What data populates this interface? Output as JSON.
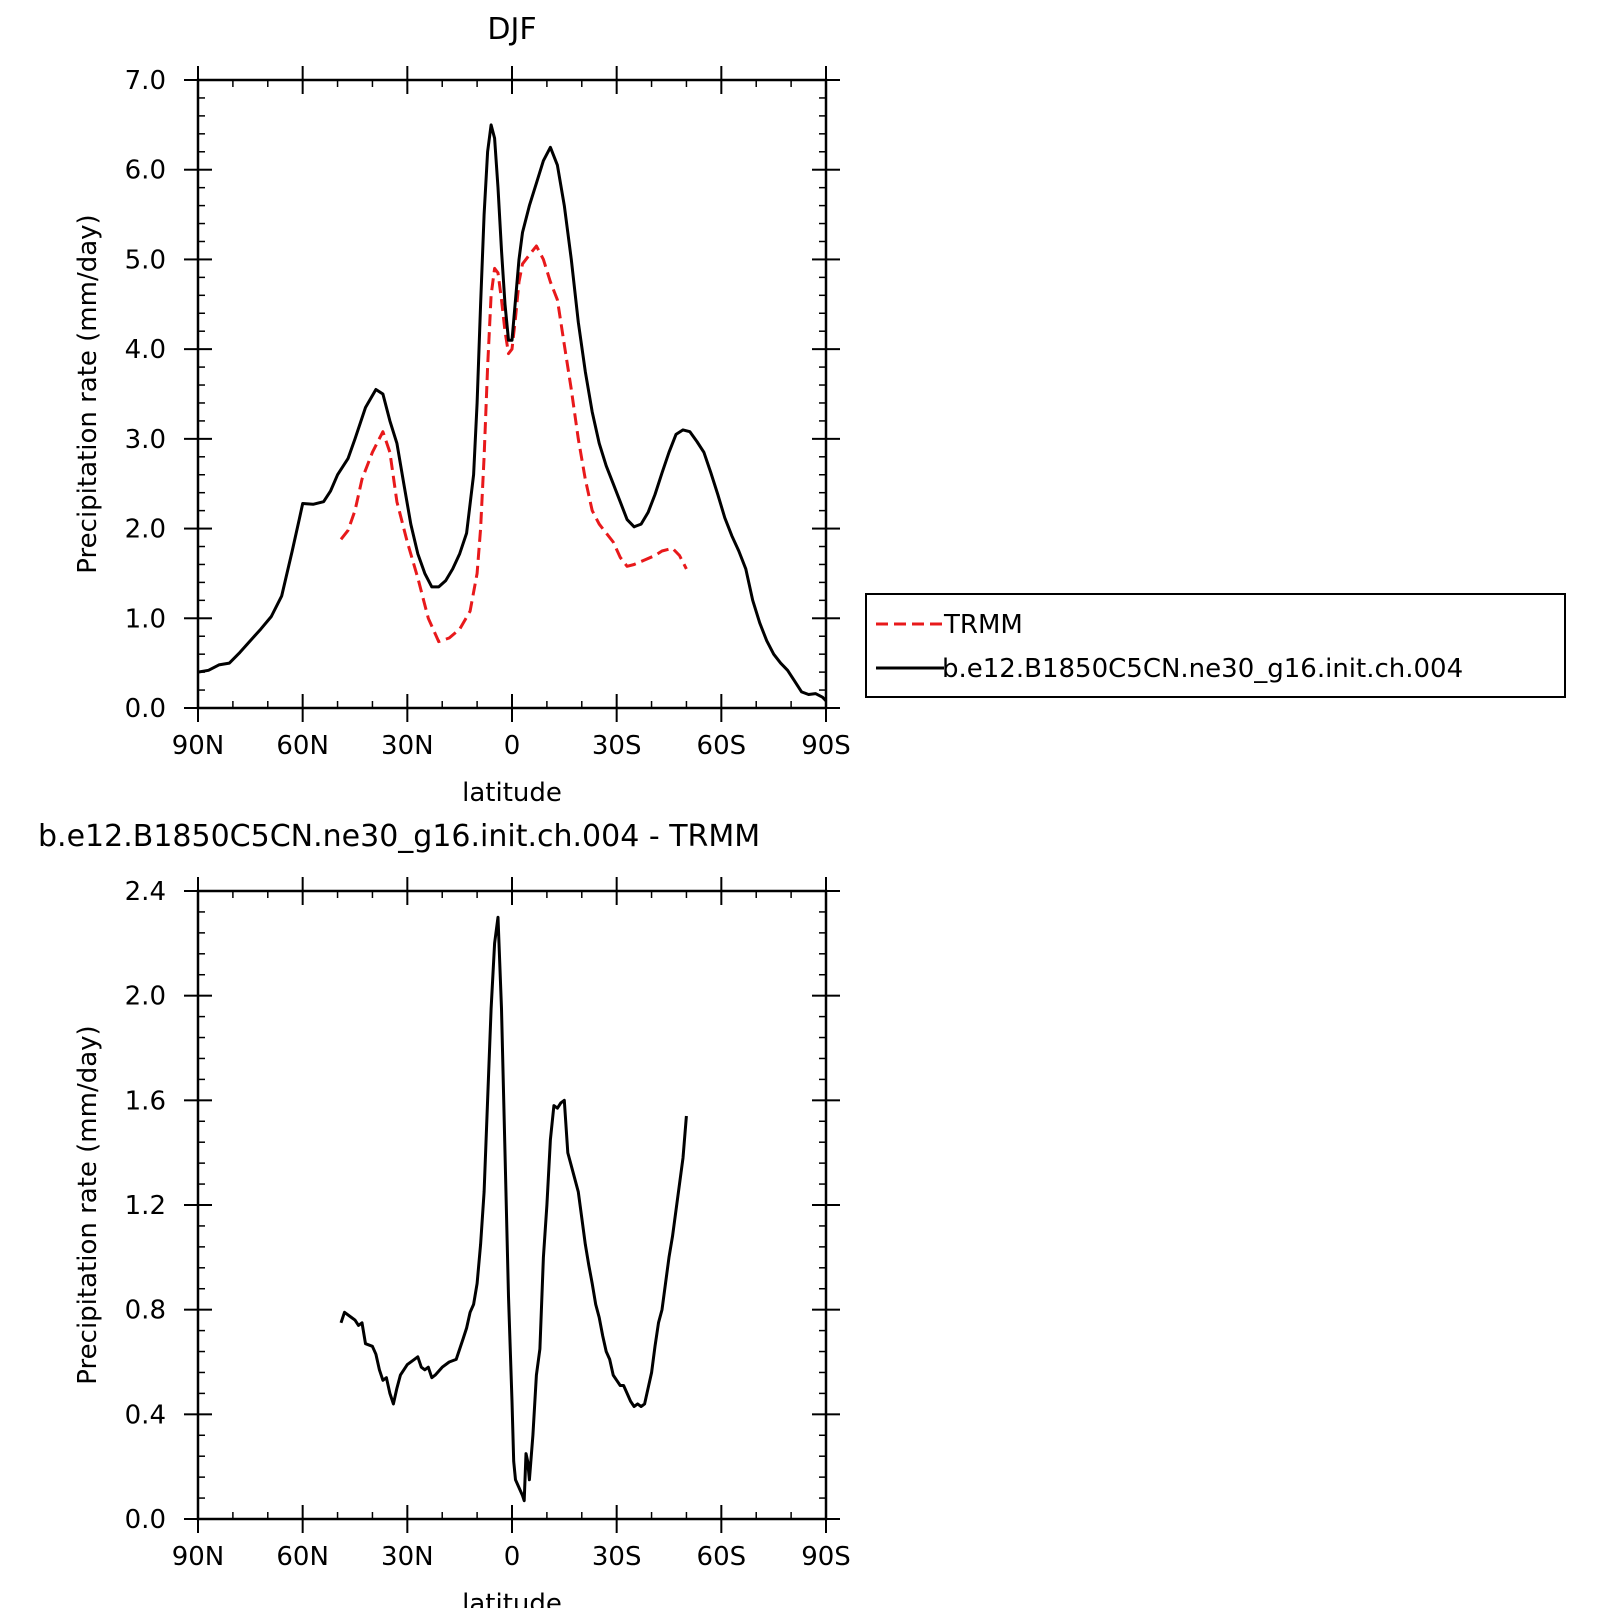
{
  "chart_data": [
    {
      "type": "line",
      "title": "DJF",
      "xlabel": "latitude",
      "ylabel": "Precipitation rate (mm/day)",
      "xlim": [
        -90,
        90
      ],
      "ylim": [
        0,
        7
      ],
      "x_ticks": [
        {
          "value": -90,
          "label": "90N"
        },
        {
          "value": -60,
          "label": "60N"
        },
        {
          "value": -30,
          "label": "30N"
        },
        {
          "value": 0,
          "label": "0"
        },
        {
          "value": 30,
          "label": "30S"
        },
        {
          "value": 60,
          "label": "60S"
        },
        {
          "value": 90,
          "label": "90S"
        }
      ],
      "y_ticks": [
        {
          "value": 0,
          "label": "0.0"
        },
        {
          "value": 1,
          "label": "1.0"
        },
        {
          "value": 2,
          "label": "2.0"
        },
        {
          "value": 3,
          "label": "3.0"
        },
        {
          "value": 4,
          "label": "4.0"
        },
        {
          "value": 5,
          "label": "5.0"
        },
        {
          "value": 6,
          "label": "6.0"
        },
        {
          "value": 7,
          "label": "7.0"
        }
      ],
      "legend_position": "right",
      "series": [
        {
          "name": "TRMM",
          "color": "#e8191b",
          "dash": "dashed",
          "points": [
            [
              -49,
              1.88
            ],
            [
              -47,
              1.98
            ],
            [
              -45,
              2.2
            ],
            [
              -43,
              2.55
            ],
            [
              -40,
              2.85
            ],
            [
              -37,
              3.08
            ],
            [
              -35,
              2.85
            ],
            [
              -33,
              2.3
            ],
            [
              -30,
              1.85
            ],
            [
              -27,
              1.45
            ],
            [
              -24,
              1.0
            ],
            [
              -21,
              0.74
            ],
            [
              -18,
              0.78
            ],
            [
              -15,
              0.88
            ],
            [
              -12,
              1.08
            ],
            [
              -10,
              1.5
            ],
            [
              -9,
              2.0
            ],
            [
              -8,
              2.8
            ],
            [
              -7,
              3.8
            ],
            [
              -6,
              4.6
            ],
            [
              -5,
              4.9
            ],
            [
              -4,
              4.85
            ],
            [
              -3,
              4.55
            ],
            [
              -2,
              4.2
            ],
            [
              -1,
              3.95
            ],
            [
              0,
              4.0
            ],
            [
              1,
              4.35
            ],
            [
              2,
              4.75
            ],
            [
              3,
              4.95
            ],
            [
              5,
              5.05
            ],
            [
              7,
              5.15
            ],
            [
              9,
              5.0
            ],
            [
              11,
              4.75
            ],
            [
              13,
              4.55
            ],
            [
              15,
              4.05
            ],
            [
              17,
              3.55
            ],
            [
              19,
              3.0
            ],
            [
              21,
              2.55
            ],
            [
              23,
              2.2
            ],
            [
              25,
              2.05
            ],
            [
              27,
              1.95
            ],
            [
              29,
              1.85
            ],
            [
              31,
              1.68
            ],
            [
              33,
              1.58
            ],
            [
              35,
              1.6
            ],
            [
              38,
              1.65
            ],
            [
              41,
              1.7
            ],
            [
              43,
              1.75
            ],
            [
              46,
              1.78
            ],
            [
              48,
              1.7
            ],
            [
              50,
              1.55
            ]
          ]
        },
        {
          "name": "b.e12.B1850C5CN.ne30_g16.init.ch.004",
          "color": "#000000",
          "dash": "solid",
          "points": [
            [
              -90,
              0.4
            ],
            [
              -87,
              0.42
            ],
            [
              -84,
              0.48
            ],
            [
              -81,
              0.5
            ],
            [
              -78,
              0.62
            ],
            [
              -75,
              0.75
            ],
            [
              -72,
              0.88
            ],
            [
              -69,
              1.02
            ],
            [
              -66,
              1.25
            ],
            [
              -63,
              1.75
            ],
            [
              -61,
              2.1
            ],
            [
              -60,
              2.28
            ],
            [
              -57,
              2.27
            ],
            [
              -54,
              2.3
            ],
            [
              -52,
              2.42
            ],
            [
              -50,
              2.6
            ],
            [
              -47,
              2.78
            ],
            [
              -45,
              3.0
            ],
            [
              -42,
              3.35
            ],
            [
              -39,
              3.55
            ],
            [
              -37,
              3.5
            ],
            [
              -35,
              3.2
            ],
            [
              -33,
              2.95
            ],
            [
              -31,
              2.5
            ],
            [
              -29,
              2.05
            ],
            [
              -27,
              1.72
            ],
            [
              -25,
              1.5
            ],
            [
              -23,
              1.35
            ],
            [
              -21,
              1.35
            ],
            [
              -19,
              1.42
            ],
            [
              -17,
              1.55
            ],
            [
              -15,
              1.72
            ],
            [
              -13,
              1.95
            ],
            [
              -11,
              2.6
            ],
            [
              -10,
              3.4
            ],
            [
              -9,
              4.5
            ],
            [
              -8,
              5.5
            ],
            [
              -7,
              6.2
            ],
            [
              -6,
              6.5
            ],
            [
              -5,
              6.35
            ],
            [
              -4,
              5.8
            ],
            [
              -3,
              5.1
            ],
            [
              -2,
              4.5
            ],
            [
              -1,
              4.1
            ],
            [
              0,
              4.1
            ],
            [
              1,
              4.55
            ],
            [
              2,
              5.0
            ],
            [
              3,
              5.3
            ],
            [
              5,
              5.6
            ],
            [
              7,
              5.85
            ],
            [
              9,
              6.1
            ],
            [
              11,
              6.25
            ],
            [
              13,
              6.05
            ],
            [
              15,
              5.6
            ],
            [
              17,
              5.0
            ],
            [
              19,
              4.3
            ],
            [
              21,
              3.75
            ],
            [
              23,
              3.3
            ],
            [
              25,
              2.95
            ],
            [
              27,
              2.7
            ],
            [
              29,
              2.5
            ],
            [
              31,
              2.3
            ],
            [
              33,
              2.1
            ],
            [
              35,
              2.02
            ],
            [
              37,
              2.05
            ],
            [
              39,
              2.18
            ],
            [
              41,
              2.38
            ],
            [
              43,
              2.62
            ],
            [
              45,
              2.85
            ],
            [
              47,
              3.05
            ],
            [
              49,
              3.1
            ],
            [
              51,
              3.08
            ],
            [
              53,
              2.97
            ],
            [
              55,
              2.85
            ],
            [
              57,
              2.62
            ],
            [
              59,
              2.38
            ],
            [
              61,
              2.12
            ],
            [
              63,
              1.92
            ],
            [
              65,
              1.75
            ],
            [
              67,
              1.55
            ],
            [
              69,
              1.2
            ],
            [
              71,
              0.95
            ],
            [
              73,
              0.75
            ],
            [
              75,
              0.6
            ],
            [
              77,
              0.5
            ],
            [
              79,
              0.42
            ],
            [
              81,
              0.3
            ],
            [
              83,
              0.18
            ],
            [
              85,
              0.15
            ],
            [
              87,
              0.16
            ],
            [
              89,
              0.12
            ],
            [
              90,
              0.08
            ]
          ]
        }
      ]
    },
    {
      "type": "line",
      "title": "b.e12.B1850C5CN.ne30_g16.init.ch.004 - TRMM",
      "xlabel": "latitude",
      "ylabel": "Precipitation rate (mm/day)",
      "xlim": [
        -90,
        90
      ],
      "ylim": [
        0,
        2.4
      ],
      "x_ticks": [
        {
          "value": -90,
          "label": "90N"
        },
        {
          "value": -60,
          "label": "60N"
        },
        {
          "value": -30,
          "label": "30N"
        },
        {
          "value": 0,
          "label": "0"
        },
        {
          "value": 30,
          "label": "30S"
        },
        {
          "value": 60,
          "label": "60S"
        },
        {
          "value": 90,
          "label": "90S"
        }
      ],
      "y_ticks": [
        {
          "value": 0,
          "label": "0.0"
        },
        {
          "value": 0.4,
          "label": "0.4"
        },
        {
          "value": 0.8,
          "label": "0.8"
        },
        {
          "value": 1.2,
          "label": "1.2"
        },
        {
          "value": 1.6,
          "label": "1.6"
        },
        {
          "value": 2.0,
          "label": "2.0"
        },
        {
          "value": 2.4,
          "label": "2.4"
        }
      ],
      "series": [
        {
          "color": "#000000",
          "dash": "solid",
          "points": [
            [
              -49,
              0.75
            ],
            [
              -48,
              0.79
            ],
            [
              -46,
              0.77
            ],
            [
              -45,
              0.76
            ],
            [
              -44,
              0.74
            ],
            [
              -43,
              0.75
            ],
            [
              -42,
              0.67
            ],
            [
              -40,
              0.66
            ],
            [
              -39,
              0.63
            ],
            [
              -38,
              0.57
            ],
            [
              -37,
              0.53
            ],
            [
              -36,
              0.54
            ],
            [
              -35,
              0.48
            ],
            [
              -34,
              0.44
            ],
            [
              -33,
              0.5
            ],
            [
              -32,
              0.55
            ],
            [
              -30,
              0.59
            ],
            [
              -28,
              0.61
            ],
            [
              -27,
              0.62
            ],
            [
              -26,
              0.58
            ],
            [
              -25,
              0.57
            ],
            [
              -24,
              0.58
            ],
            [
              -23,
              0.54
            ],
            [
              -22,
              0.55
            ],
            [
              -20,
              0.58
            ],
            [
              -18,
              0.6
            ],
            [
              -16,
              0.61
            ],
            [
              -14,
              0.69
            ],
            [
              -13,
              0.73
            ],
            [
              -12,
              0.79
            ],
            [
              -11,
              0.82
            ],
            [
              -10,
              0.9
            ],
            [
              -9,
              1.05
            ],
            [
              -8,
              1.25
            ],
            [
              -7,
              1.6
            ],
            [
              -6,
              1.95
            ],
            [
              -5,
              2.2
            ],
            [
              -4,
              2.3
            ],
            [
              -3,
              1.95
            ],
            [
              -2,
              1.4
            ],
            [
              -1,
              0.85
            ],
            [
              0,
              0.45
            ],
            [
              0.5,
              0.22
            ],
            [
              1,
              0.15
            ],
            [
              2,
              0.12
            ],
            [
              3,
              0.09
            ],
            [
              3.5,
              0.07
            ],
            [
              4,
              0.25
            ],
            [
              4.5,
              0.22
            ],
            [
              5,
              0.15
            ],
            [
              6,
              0.32
            ],
            [
              7,
              0.55
            ],
            [
              8,
              0.65
            ],
            [
              9,
              1.0
            ],
            [
              10,
              1.2
            ],
            [
              11,
              1.45
            ],
            [
              12,
              1.58
            ],
            [
              13,
              1.57
            ],
            [
              14,
              1.59
            ],
            [
              15,
              1.6
            ],
            [
              16,
              1.4
            ],
            [
              17,
              1.35
            ],
            [
              18,
              1.3
            ],
            [
              19,
              1.25
            ],
            [
              20,
              1.15
            ],
            [
              21,
              1.05
            ],
            [
              22,
              0.97
            ],
            [
              23,
              0.9
            ],
            [
              24,
              0.82
            ],
            [
              25,
              0.77
            ],
            [
              26,
              0.7
            ],
            [
              27,
              0.64
            ],
            [
              28,
              0.61
            ],
            [
              29,
              0.55
            ],
            [
              30,
              0.53
            ],
            [
              31,
              0.51
            ],
            [
              32,
              0.51
            ],
            [
              33,
              0.48
            ],
            [
              34,
              0.45
            ],
            [
              35,
              0.43
            ],
            [
              36,
              0.44
            ],
            [
              37,
              0.43
            ],
            [
              38,
              0.44
            ],
            [
              39,
              0.5
            ],
            [
              40,
              0.56
            ],
            [
              41,
              0.66
            ],
            [
              42,
              0.75
            ],
            [
              43,
              0.8
            ],
            [
              44,
              0.9
            ],
            [
              45,
              1.0
            ],
            [
              46,
              1.08
            ],
            [
              47,
              1.18
            ],
            [
              48,
              1.28
            ],
            [
              49,
              1.38
            ],
            [
              50,
              1.54
            ]
          ]
        }
      ]
    }
  ]
}
